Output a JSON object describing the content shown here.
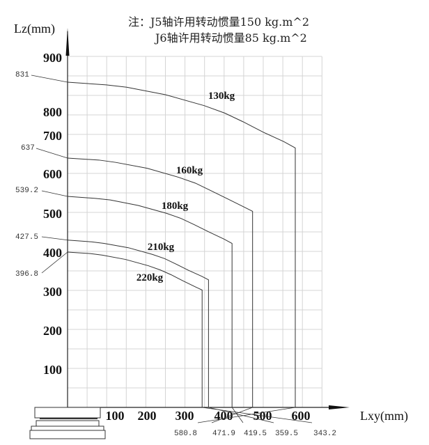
{
  "notes": {
    "line1": "注：J5轴许用转动惯量150 kg.m^2",
    "line2": "J6轴许用转动惯量85 kg.m^2"
  },
  "chart_data": {
    "type": "line",
    "xlabel": "Lxy(mm)",
    "ylabel": "Lz(mm)",
    "xlim": [
      0,
      650
    ],
    "ylim": [
      0,
      900
    ],
    "grid": true,
    "x_ticks": [
      "100",
      "200",
      "300",
      "400",
      "500",
      "600"
    ],
    "y_ticks": [
      "900",
      "800",
      "700",
      "600",
      "500",
      "400",
      "300",
      "200",
      "100"
    ],
    "series": [
      {
        "name": "130kg",
        "start_z_label": "831",
        "end_x_label": "580.8",
        "x": [
          0,
          98.7,
          151,
          249.7,
          348.5,
          400.8,
          447.2,
          499.5,
          551.8,
          580.8,
          580.8
        ],
        "y": [
          831,
          824,
          818,
          799,
          771,
          752,
          730,
          703,
          679,
          663,
          0
        ]
      },
      {
        "name": "160kg",
        "start_z_label": "637",
        "end_x_label": "471.9",
        "x": [
          0,
          80,
          123,
          203,
          283,
          326,
          363,
          406,
          448,
          471.9,
          471.9
        ],
        "y": [
          637,
          632,
          626,
          611,
          588,
          573,
          555,
          534,
          513,
          501,
          0
        ]
      },
      {
        "name": "180kg",
        "start_z_label": "539.2",
        "end_x_label": "419.5",
        "x": [
          0,
          71,
          109,
          180,
          252,
          289,
          323,
          361,
          399,
          419.5,
          419.5
        ],
        "y": [
          539.2,
          534,
          530,
          516,
          496,
          483,
          467,
          448,
          430,
          419,
          0
        ]
      },
      {
        "name": "210kg",
        "start_z_label": "427.5",
        "end_x_label": "359.5",
        "x": [
          0,
          61,
          93,
          155,
          216,
          248,
          277,
          309,
          342,
          359.5,
          359.5
        ],
        "y": [
          427.5,
          423,
          419,
          408,
          391,
          380,
          366,
          350,
          335,
          326,
          0
        ]
      },
      {
        "name": "220kg",
        "start_z_label": "396.8",
        "end_x_label": "343.2",
        "x": [
          0,
          58,
          89,
          148,
          206,
          237,
          264,
          295,
          326,
          343.2,
          343.2
        ],
        "y": [
          396.8,
          393,
          389,
          378,
          362,
          351,
          339,
          323,
          308,
          300,
          0
        ]
      }
    ]
  }
}
